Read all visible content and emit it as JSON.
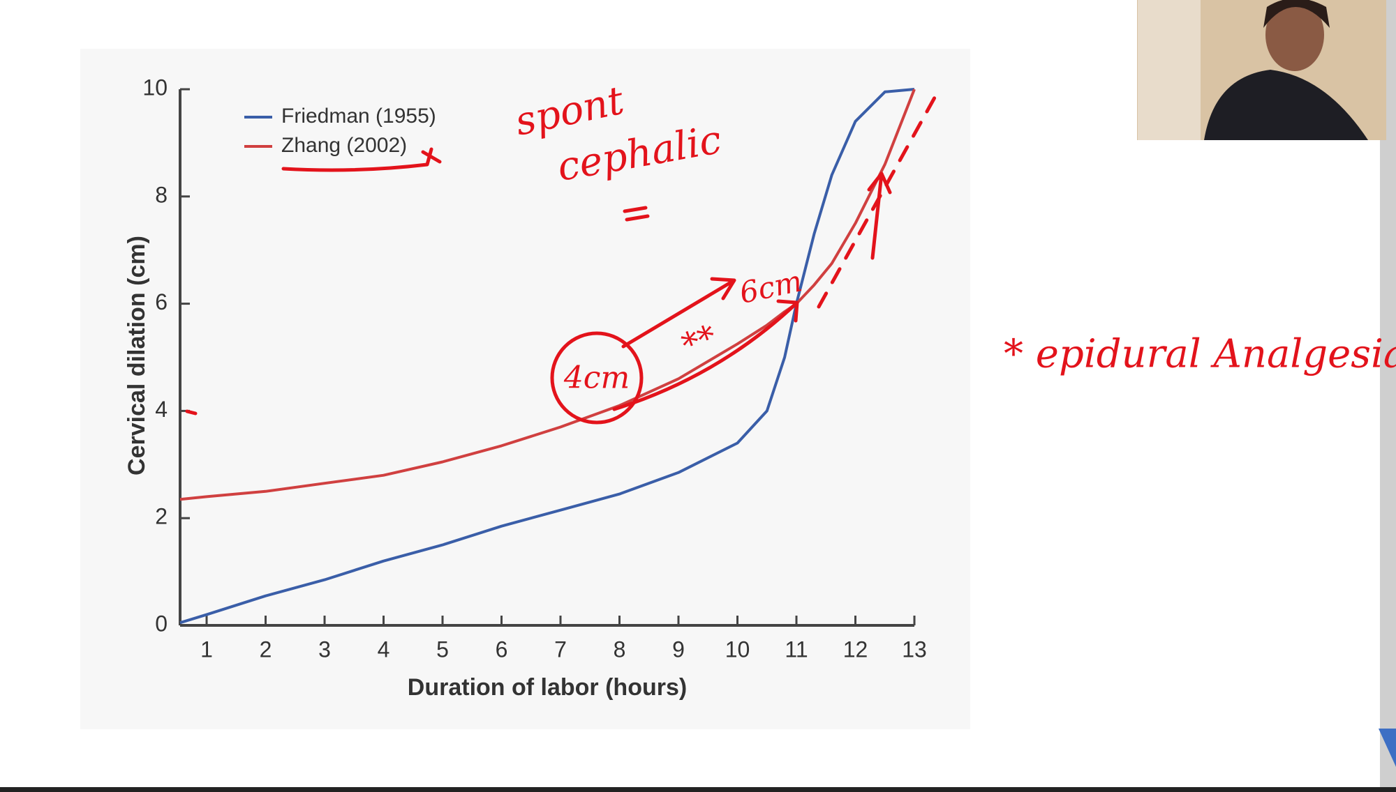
{
  "chart_data": {
    "type": "line",
    "x_label": "Duration of labor (hours)",
    "y_label": "Cervical dilation (cm)",
    "x": [
      0.55,
      1,
      2,
      3,
      4,
      5,
      6,
      7,
      8,
      9,
      10,
      10.5,
      10.8,
      11,
      11.3,
      11.6,
      12,
      12.5,
      13
    ],
    "series": [
      {
        "name": "Friedman (1955)",
        "color": "#3a5ea8",
        "values": [
          0.05,
          0.2,
          0.55,
          0.85,
          1.2,
          1.5,
          1.85,
          2.15,
          2.45,
          2.85,
          3.4,
          4.0,
          5.0,
          6.0,
          7.3,
          8.4,
          9.4,
          9.95,
          10
        ]
      },
      {
        "name": "Zhang (2002)",
        "color": "#d04040",
        "values": [
          2.35,
          2.4,
          2.5,
          2.65,
          2.8,
          3.05,
          3.35,
          3.7,
          4.1,
          4.6,
          5.25,
          5.6,
          5.85,
          6.0,
          6.35,
          6.75,
          7.5,
          8.6,
          10
        ]
      }
    ],
    "xlim": [
      0.55,
      13
    ],
    "xticks": [
      1,
      2,
      3,
      4,
      5,
      6,
      7,
      8,
      9,
      10,
      11,
      12,
      13
    ],
    "ylim": [
      0,
      10
    ],
    "yticks": [
      0,
      2,
      4,
      6,
      8,
      10
    ],
    "legend": "upper left",
    "annotations": [
      "spont",
      "cephalic",
      "4cm",
      "6cm",
      "**",
      "* epidural Analgesia"
    ]
  }
}
